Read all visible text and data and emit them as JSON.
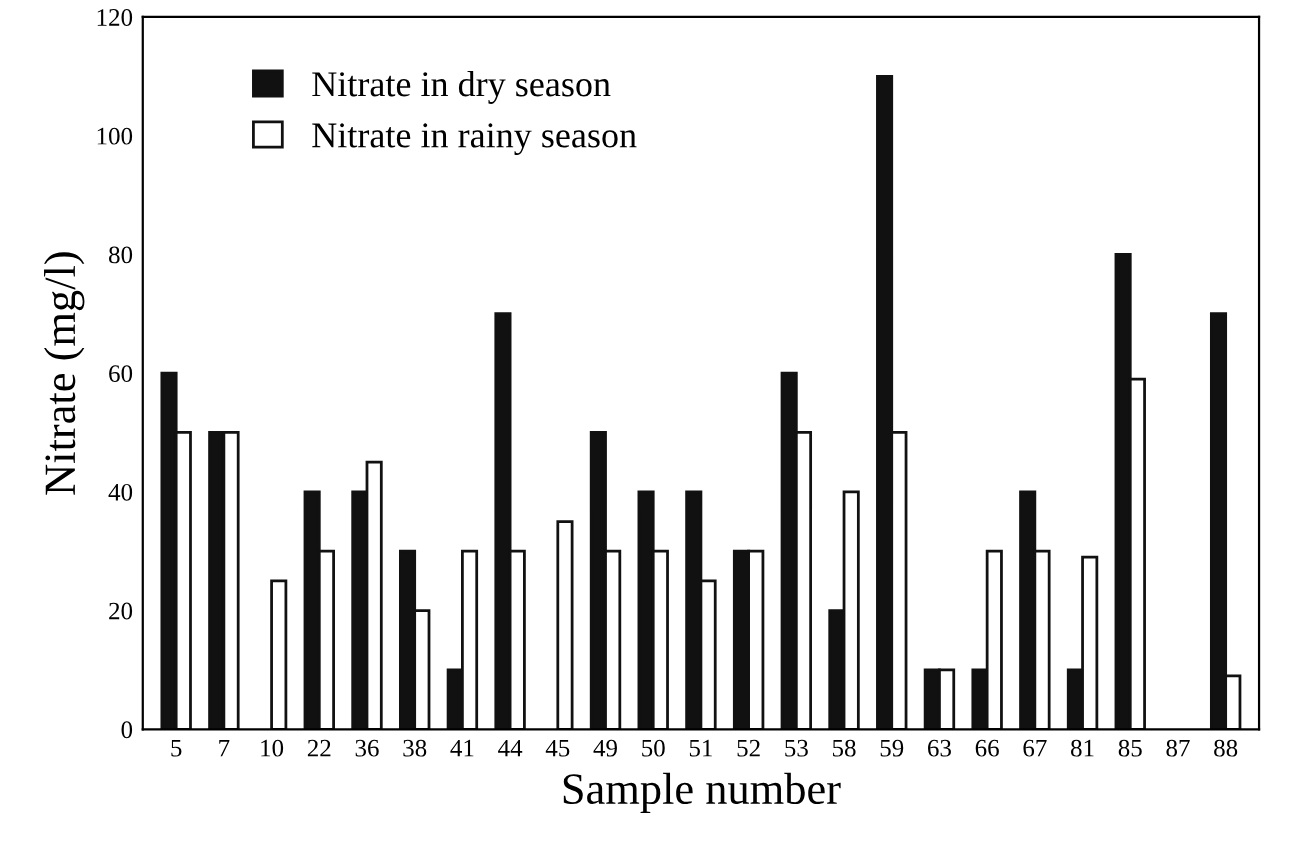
{
  "chart_data": {
    "type": "bar",
    "xlabel": "Sample number",
    "ylabel": "Nitrate (mg/l)",
    "categories": [
      "5",
      "7",
      "10",
      "22",
      "36",
      "38",
      "41",
      "44",
      "45",
      "49",
      "50",
      "51",
      "52",
      "53",
      "58",
      "59",
      "63",
      "66",
      "67",
      "81",
      "85",
      "87",
      "88"
    ],
    "series": [
      {
        "name": "Nitrate in dry season",
        "color": "#111111",
        "values": [
          60,
          50,
          0,
          40,
          40,
          30,
          10,
          70,
          0,
          50,
          40,
          40,
          30,
          60,
          20,
          110,
          10,
          10,
          40,
          10,
          80,
          0,
          70
        ]
      },
      {
        "name": "Nitrate in rainy season",
        "color": "#ffffff",
        "values": [
          50,
          50,
          25,
          30,
          45,
          20,
          30,
          30,
          35,
          30,
          30,
          25,
          30,
          50,
          40,
          50,
          10,
          30,
          30,
          29,
          59,
          0,
          9
        ]
      }
    ],
    "ylim": [
      0,
      120
    ],
    "yticks": [
      0,
      20,
      40,
      60,
      80,
      100,
      120
    ],
    "legend": "top left",
    "grid": false
  }
}
